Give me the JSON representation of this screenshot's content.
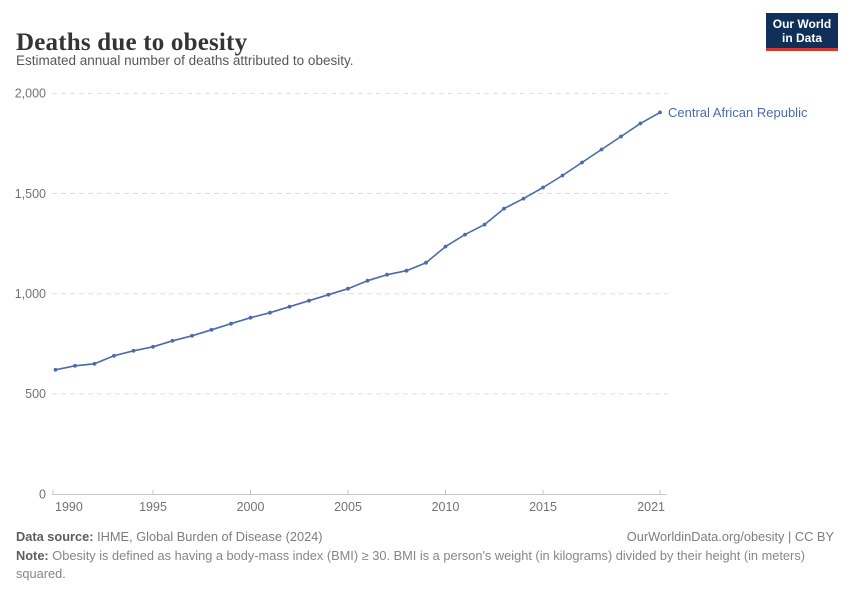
{
  "header": {
    "title": "Deaths due to obesity",
    "subtitle": "Estimated annual number of deaths attributed to obesity.",
    "logo": {
      "line1": "Our World",
      "line2": "in Data",
      "bg_color": "#10305a",
      "bar_color": "#d7382e"
    }
  },
  "chart_data": {
    "type": "line",
    "title": "Deaths due to obesity",
    "subtitle": "Estimated annual number of deaths attributed to obesity.",
    "x": [
      1990,
      1991,
      1992,
      1993,
      1994,
      1995,
      1996,
      1997,
      1998,
      1999,
      2000,
      2001,
      2002,
      2003,
      2004,
      2005,
      2006,
      2007,
      2008,
      2009,
      2010,
      2011,
      2012,
      2013,
      2014,
      2015,
      2016,
      2017,
      2018,
      2019,
      2020,
      2021
    ],
    "series": [
      {
        "name": "Central African Republic",
        "color": "#4b6bac",
        "values": [
          620,
          640,
          650,
          690,
          715,
          735,
          765,
          790,
          820,
          850,
          880,
          905,
          935,
          965,
          995,
          1025,
          1065,
          1095,
          1115,
          1155,
          1235,
          1295,
          1345,
          1425,
          1475,
          1530,
          1590,
          1655,
          1720,
          1785,
          1850,
          1905
        ]
      }
    ],
    "xlabel": "",
    "ylabel": "",
    "ylim": [
      0,
      2000
    ],
    "yticks": [
      0,
      500,
      1000,
      1500,
      2000
    ],
    "ytick_labels": [
      "0",
      "500",
      "1,000",
      "1,500",
      "2,000"
    ],
    "xtick_years": [
      1990,
      1995,
      2000,
      2005,
      2010,
      2015,
      2021
    ],
    "grid": "horizontal-dashed",
    "grid_color": "#dddddd",
    "axis_color": "#c9c9c9",
    "tick_label_color": "#737373",
    "legend_position": "end-of-line-label"
  },
  "footer": {
    "data_source_label": "Data source:",
    "data_source_text": " IHME, Global Burden of Disease (2024)",
    "citation": "OurWorldinData.org/obesity | CC BY",
    "note_label": "Note:",
    "note_text": " Obesity is defined as having a body-mass index (BMI) ≥ 30. BMI is a person's weight (in kilograms) divided by their height (in meters) squared."
  }
}
